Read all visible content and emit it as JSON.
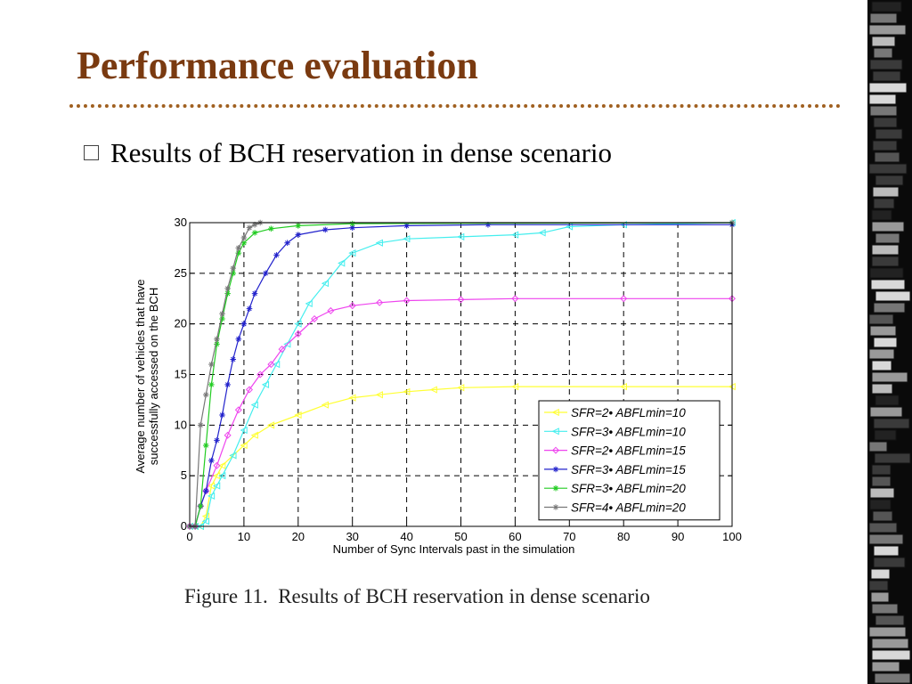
{
  "slide": {
    "title": "Performance evaluation",
    "bullet": "Results of BCH reservation in dense scenario",
    "caption": "Figure 11.  Results of BCH reservation in dense scenario"
  },
  "chart_data": {
    "type": "line",
    "title": "",
    "xlabel": "Number of Sync Intervals past in the simulation",
    "ylabel": "Average number of vehicles that have successfully accessed on the BCH",
    "ylabel_lines": [
      "Average number of vehicles that have",
      "successfully accessed on the BCH"
    ],
    "xlim": [
      0,
      100
    ],
    "ylim": [
      0,
      30
    ],
    "xticks": [
      0,
      10,
      20,
      30,
      40,
      50,
      60,
      70,
      80,
      90,
      100
    ],
    "yticks": [
      0,
      5,
      10,
      15,
      20,
      25,
      30
    ],
    "grid": "dashed",
    "legend_position": "bottom-right",
    "series": [
      {
        "name": "SFR=2•  ABFLmin=10",
        "color": "#ffff33",
        "marker": "tri",
        "points": [
          [
            0,
            0
          ],
          [
            1,
            0
          ],
          [
            2,
            0
          ],
          [
            3,
            1
          ],
          [
            4,
            4
          ],
          [
            5,
            5
          ],
          [
            6,
            6
          ],
          [
            8,
            7
          ],
          [
            10,
            8
          ],
          [
            12,
            9
          ],
          [
            15,
            10
          ],
          [
            20,
            11
          ],
          [
            25,
            12
          ],
          [
            30,
            12.7
          ],
          [
            35,
            13
          ],
          [
            40,
            13.3
          ],
          [
            45,
            13.5
          ],
          [
            50,
            13.7
          ],
          [
            60,
            13.8
          ],
          [
            80,
            13.8
          ],
          [
            100,
            13.8
          ]
        ]
      },
      {
        "name": "SFR=3•  ABFLmin=10",
        "color": "#44eeee",
        "marker": "tri",
        "points": [
          [
            0,
            0
          ],
          [
            1,
            0
          ],
          [
            2,
            0
          ],
          [
            3,
            0.5
          ],
          [
            4,
            3
          ],
          [
            5,
            4
          ],
          [
            6,
            5
          ],
          [
            8,
            7
          ],
          [
            10,
            9.5
          ],
          [
            12,
            12
          ],
          [
            14,
            14
          ],
          [
            16,
            16
          ],
          [
            18,
            18
          ],
          [
            20,
            20
          ],
          [
            22,
            22
          ],
          [
            25,
            24
          ],
          [
            28,
            26
          ],
          [
            30,
            27
          ],
          [
            35,
            28
          ],
          [
            40,
            28.4
          ],
          [
            50,
            28.6
          ],
          [
            60,
            28.8
          ],
          [
            65,
            29
          ],
          [
            70,
            29.6
          ],
          [
            80,
            29.8
          ],
          [
            100,
            30
          ]
        ]
      },
      {
        "name": "SFR=2•  ABFLmin=15",
        "color": "#ee44ee",
        "marker": "diamond",
        "points": [
          [
            0,
            0
          ],
          [
            1,
            0
          ],
          [
            2,
            2
          ],
          [
            3,
            3.5
          ],
          [
            5,
            6
          ],
          [
            7,
            9
          ],
          [
            9,
            11.5
          ],
          [
            11,
            13.5
          ],
          [
            13,
            15
          ],
          [
            15,
            16
          ],
          [
            17,
            17.5
          ],
          [
            20,
            19
          ],
          [
            23,
            20.5
          ],
          [
            26,
            21.3
          ],
          [
            30,
            21.8
          ],
          [
            35,
            22.1
          ],
          [
            40,
            22.3
          ],
          [
            50,
            22.4
          ],
          [
            60,
            22.5
          ],
          [
            80,
            22.5
          ],
          [
            100,
            22.5
          ]
        ]
      },
      {
        "name": "SFR=3•  ABFLmin=15",
        "color": "#2222cc",
        "marker": "star",
        "points": [
          [
            0,
            0
          ],
          [
            1,
            0
          ],
          [
            2,
            2
          ],
          [
            3,
            3.5
          ],
          [
            4,
            6.5
          ],
          [
            5,
            8.5
          ],
          [
            6,
            11
          ],
          [
            7,
            14
          ],
          [
            8,
            16.5
          ],
          [
            9,
            18.5
          ],
          [
            10,
            20
          ],
          [
            11,
            21.5
          ],
          [
            12,
            23
          ],
          [
            14,
            25
          ],
          [
            16,
            26.8
          ],
          [
            18,
            28
          ],
          [
            20,
            28.8
          ],
          [
            25,
            29.3
          ],
          [
            30,
            29.5
          ],
          [
            40,
            29.7
          ],
          [
            55,
            29.8
          ],
          [
            100,
            29.8
          ]
        ]
      },
      {
        "name": "SFR=3•  ABFLmin=20",
        "color": "#22cc22",
        "marker": "star",
        "points": [
          [
            0,
            0
          ],
          [
            1,
            0
          ],
          [
            2,
            2
          ],
          [
            3,
            8
          ],
          [
            4,
            14
          ],
          [
            5,
            18
          ],
          [
            6,
            20.5
          ],
          [
            7,
            23
          ],
          [
            8,
            25
          ],
          [
            9,
            27
          ],
          [
            10,
            28
          ],
          [
            12,
            29
          ],
          [
            15,
            29.4
          ],
          [
            20,
            29.7
          ],
          [
            30,
            29.9
          ],
          [
            100,
            30
          ]
        ]
      },
      {
        "name": "SFR=4•  ABFLmin=20",
        "color": "#777777",
        "marker": "star",
        "points": [
          [
            0,
            0
          ],
          [
            1,
            0
          ],
          [
            2,
            10
          ],
          [
            3,
            13
          ],
          [
            4,
            16
          ],
          [
            5,
            18.5
          ],
          [
            6,
            21
          ],
          [
            7,
            23.5
          ],
          [
            8,
            25.5
          ],
          [
            9,
            27.5
          ],
          [
            10,
            28.5
          ],
          [
            11,
            29.5
          ],
          [
            12,
            29.8
          ],
          [
            13,
            30
          ],
          [
            100,
            30
          ]
        ]
      }
    ]
  }
}
